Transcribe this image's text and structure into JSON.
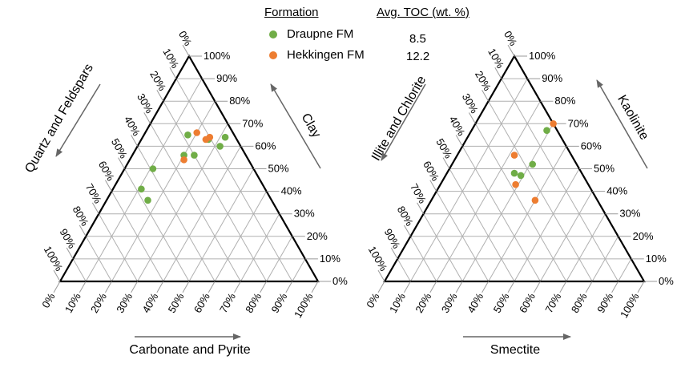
{
  "legend": {
    "formation_header": "Formation",
    "toc_header": "Avg. TOC (wt. %)",
    "entries": [
      {
        "name": "Draupne FM",
        "toc": "8.5",
        "color": "#70ad47"
      },
      {
        "name": "Hekkingen FM",
        "toc": "12.2",
        "color": "#ed7d31"
      }
    ]
  },
  "chart_data": [
    {
      "type": "scatter",
      "subtype": "ternary",
      "axes": {
        "bottom": "Carbonate and Pyrite",
        "left": "Quartz and Feldspars",
        "right": "Clay"
      },
      "ticks": [
        "0%",
        "10%",
        "20%",
        "30%",
        "40%",
        "50%",
        "60%",
        "70%",
        "80%",
        "90%",
        "100%"
      ],
      "grid": true,
      "series": [
        {
          "name": "Draupne FM",
          "color": "#70ad47",
          "points": [
            {
              "carbonate": 17,
              "quartz": 18,
              "clay": 65
            },
            {
              "carbonate": 24,
              "quartz": 20,
              "clay": 56
            },
            {
              "carbonate": 26,
              "quartz": 11,
              "clay": 63
            },
            {
              "carbonate": 32,
              "quartz": 4,
              "clay": 64
            },
            {
              "carbonate": 11,
              "quartz": 39,
              "clay": 50
            },
            {
              "carbonate": 11,
              "quartz": 48,
              "clay": 41
            },
            {
              "carbonate": 16,
              "quartz": 48,
              "clay": 36
            },
            {
              "carbonate": 32,
              "quartz": 8,
              "clay": 60
            },
            {
              "carbonate": 20,
              "quartz": 24,
              "clay": 56
            }
          ]
        },
        {
          "name": "Hekkingen FM",
          "color": "#ed7d31",
          "points": [
            {
              "carbonate": 20,
              "quartz": 14,
              "clay": 66
            },
            {
              "carbonate": 25,
              "quartz": 12,
              "clay": 63
            },
            {
              "carbonate": 21,
              "quartz": 25,
              "clay": 54
            },
            {
              "carbonate": 26,
              "quartz": 10,
              "clay": 64
            }
          ]
        }
      ]
    },
    {
      "type": "scatter",
      "subtype": "ternary",
      "axes": {
        "bottom": "Smectite",
        "left": "Illite and Chlorite",
        "right": "Kaolinite"
      },
      "ticks": [
        "0%",
        "10%",
        "20%",
        "30%",
        "40%",
        "50%",
        "60%",
        "70%",
        "80%",
        "90%",
        "100%"
      ],
      "grid": true,
      "series": [
        {
          "name": "Draupne FM",
          "color": "#70ad47",
          "points": [
            {
              "smectite": 26,
              "illite": 26,
              "kaolinite": 48
            },
            {
              "smectite": 29,
              "illite": 24,
              "kaolinite": 47
            },
            {
              "smectite": 31,
              "illite": 17,
              "kaolinite": 52
            },
            {
              "smectite": 29,
              "illite": 4,
              "kaolinite": 67
            }
          ]
        },
        {
          "name": "Hekkingen FM",
          "color": "#ed7d31",
          "points": [
            {
              "smectite": 22,
              "illite": 22,
              "kaolinite": 56
            },
            {
              "smectite": 30,
              "illite": 0,
              "kaolinite": 70
            },
            {
              "smectite": 29,
              "illite": 28,
              "kaolinite": 43
            },
            {
              "smectite": 40,
              "illite": 24,
              "kaolinite": 36
            }
          ]
        }
      ]
    }
  ]
}
